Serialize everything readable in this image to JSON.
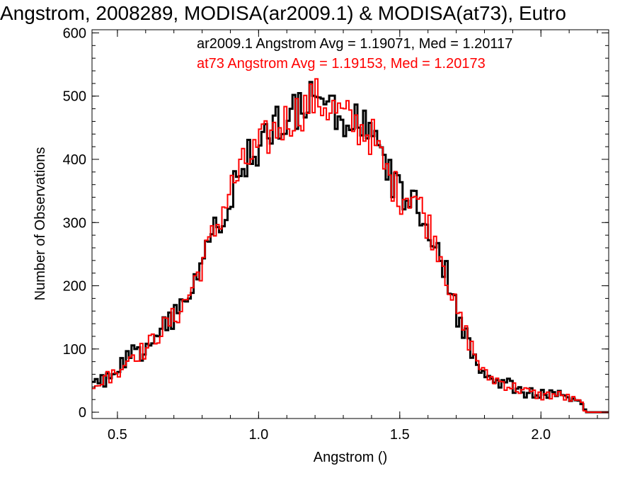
{
  "chart_data": {
    "type": "line",
    "title": "Angstrom, 2008289, MODISA(ar2009.1) & MODISA(at73), Eutro",
    "xlabel": "Angstrom ()",
    "ylabel": "Number of Observations",
    "xlim": [
      0.41,
      2.24
    ],
    "ylim": [
      -10,
      605
    ],
    "xticks": [
      "0.5",
      "1.0",
      "1.5",
      "2.0"
    ],
    "yticks": [
      "0",
      "100",
      "200",
      "300",
      "400",
      "500",
      "600"
    ],
    "step": true,
    "bin_width": 0.01,
    "series": [
      {
        "name": "ar2009.1",
        "color": "#000000",
        "label": "ar2009.1 Angstrom Avg = 1.19071, Med = 1.20117",
        "points": [
          [
            0.41,
            38
          ],
          [
            0.45,
            50
          ],
          [
            0.5,
            68
          ],
          [
            0.55,
            90
          ],
          [
            0.6,
            100
          ],
          [
            0.65,
            125
          ],
          [
            0.7,
            150
          ],
          [
            0.75,
            180
          ],
          [
            0.8,
            240
          ],
          [
            0.85,
            290
          ],
          [
            0.9,
            350
          ],
          [
            0.95,
            395
          ],
          [
            1.0,
            415
          ],
          [
            1.05,
            445
          ],
          [
            1.1,
            460
          ],
          [
            1.15,
            475
          ],
          [
            1.2,
            498
          ],
          [
            1.25,
            485
          ],
          [
            1.3,
            465
          ],
          [
            1.35,
            455
          ],
          [
            1.4,
            435
          ],
          [
            1.45,
            385
          ],
          [
            1.5,
            345
          ],
          [
            1.55,
            345
          ],
          [
            1.6,
            300
          ],
          [
            1.65,
            245
          ],
          [
            1.7,
            160
          ],
          [
            1.75,
            105
          ],
          [
            1.8,
            60
          ],
          [
            1.85,
            48
          ],
          [
            1.9,
            42
          ],
          [
            1.95,
            30
          ],
          [
            2.0,
            28
          ],
          [
            2.05,
            30
          ],
          [
            2.1,
            20
          ],
          [
            2.15,
            10
          ],
          [
            2.16,
            0
          ],
          [
            2.24,
            0
          ]
        ]
      },
      {
        "name": "at73",
        "color": "#ff0000",
        "label": "at73 Angstrom Avg = 1.19153, Med = 1.20173",
        "points": [
          [
            0.41,
            40
          ],
          [
            0.45,
            48
          ],
          [
            0.5,
            66
          ],
          [
            0.55,
            92
          ],
          [
            0.6,
            98
          ],
          [
            0.65,
            128
          ],
          [
            0.7,
            148
          ],
          [
            0.75,
            182
          ],
          [
            0.8,
            236
          ],
          [
            0.85,
            292
          ],
          [
            0.9,
            352
          ],
          [
            0.95,
            392
          ],
          [
            1.0,
            418
          ],
          [
            1.05,
            442
          ],
          [
            1.1,
            462
          ],
          [
            1.15,
            478
          ],
          [
            1.2,
            496
          ],
          [
            1.25,
            482
          ],
          [
            1.3,
            468
          ],
          [
            1.35,
            452
          ],
          [
            1.4,
            438
          ],
          [
            1.45,
            382
          ],
          [
            1.5,
            342
          ],
          [
            1.55,
            348
          ],
          [
            1.6,
            298
          ],
          [
            1.65,
            248
          ],
          [
            1.7,
            158
          ],
          [
            1.75,
            108
          ],
          [
            1.8,
            58
          ],
          [
            1.85,
            50
          ],
          [
            1.9,
            40
          ],
          [
            1.95,
            32
          ],
          [
            2.0,
            26
          ],
          [
            2.05,
            28
          ],
          [
            2.1,
            22
          ],
          [
            2.15,
            12
          ],
          [
            2.16,
            0
          ],
          [
            2.24,
            0
          ]
        ]
      }
    ]
  }
}
